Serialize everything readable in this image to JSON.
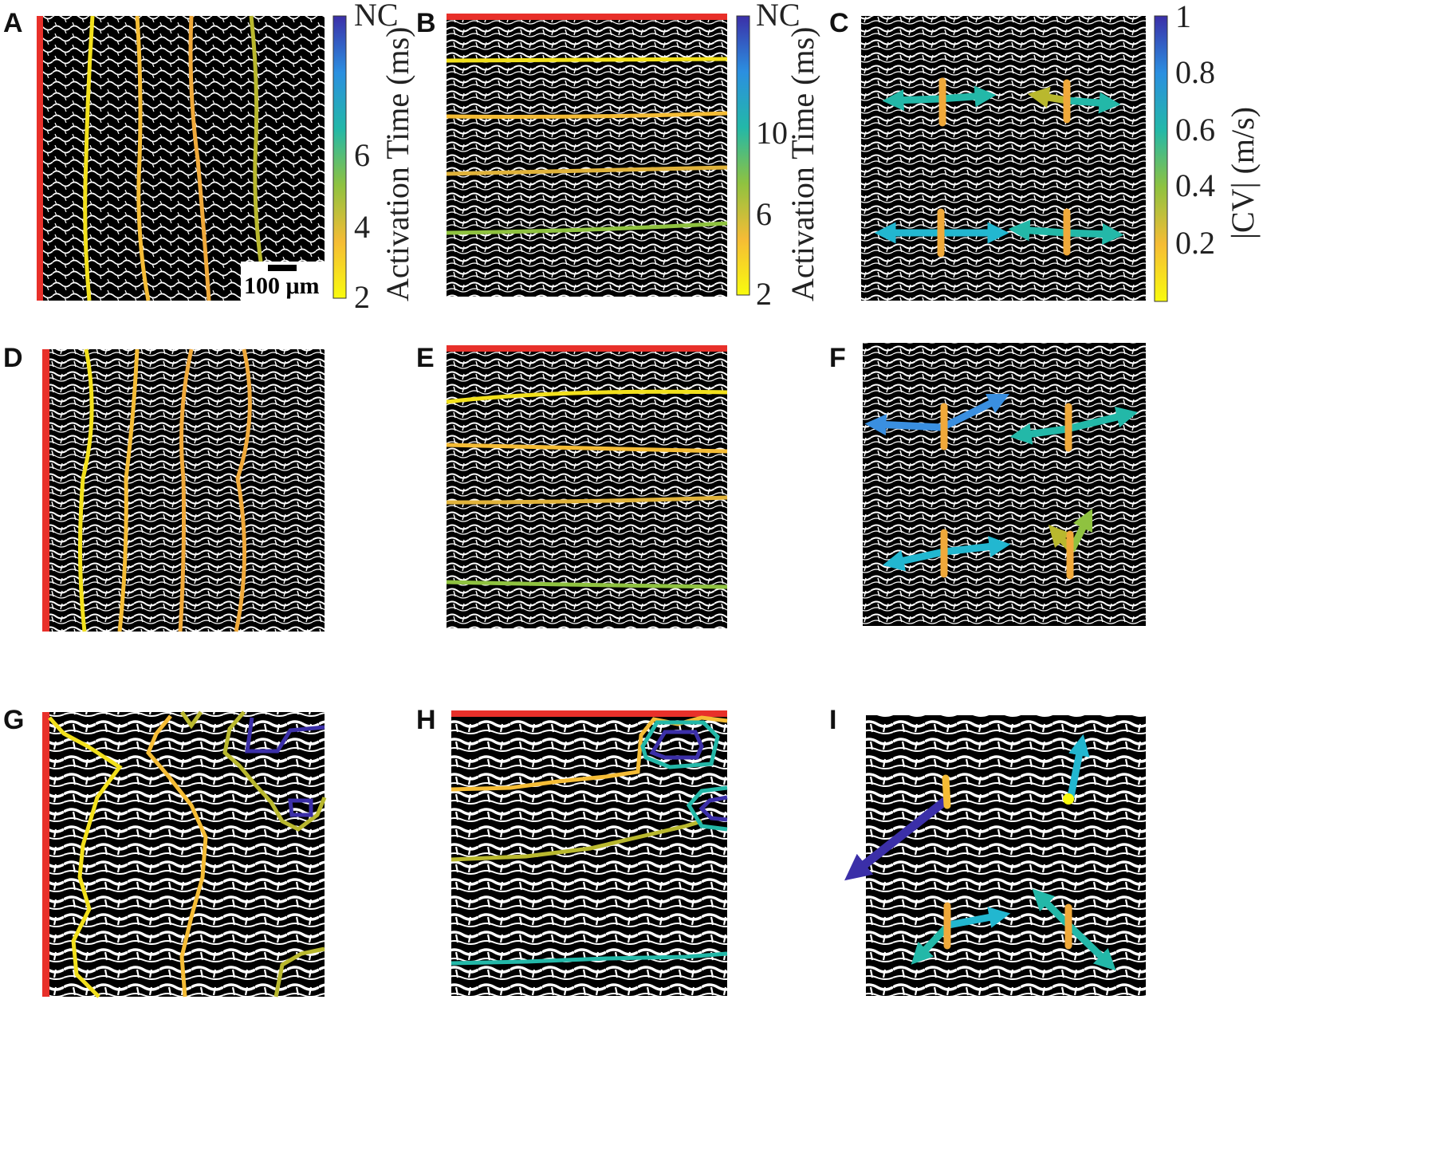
{
  "figure": {
    "panels": [
      {
        "letter": "A"
      },
      {
        "letter": "B"
      },
      {
        "letter": "C"
      },
      {
        "letter": "D"
      },
      {
        "letter": "E"
      },
      {
        "letter": "F"
      },
      {
        "letter": "G"
      },
      {
        "letter": "H"
      },
      {
        "letter": "I"
      }
    ],
    "scale_bar_label": "100 μm",
    "colorbars": [
      {
        "title": "Activation Time (ms)",
        "ticks": [
          "NC",
          "6",
          "4",
          "2"
        ]
      },
      {
        "title": "Activation Time (ms)",
        "ticks": [
          "NC",
          "10",
          "6",
          "2"
        ]
      },
      {
        "title": "|CV| (m/s)",
        "ticks": [
          "1",
          "0.8",
          "0.6",
          "0.4",
          "0.2"
        ]
      }
    ]
  },
  "colors": {
    "pacing_edge": "#e8302a",
    "yellow": "#f2e01c",
    "light_orange": "#f5bc35",
    "orange": "#f0a93a",
    "green": "#8fc240",
    "olive": "#b9b82e",
    "teal": "#23b8a8",
    "cyan": "#22b7d0",
    "blue": "#3a8fe0",
    "indigo": "#3b2fa8",
    "tissue_dark": "#000000",
    "tissue_light": "#ffffff"
  }
}
